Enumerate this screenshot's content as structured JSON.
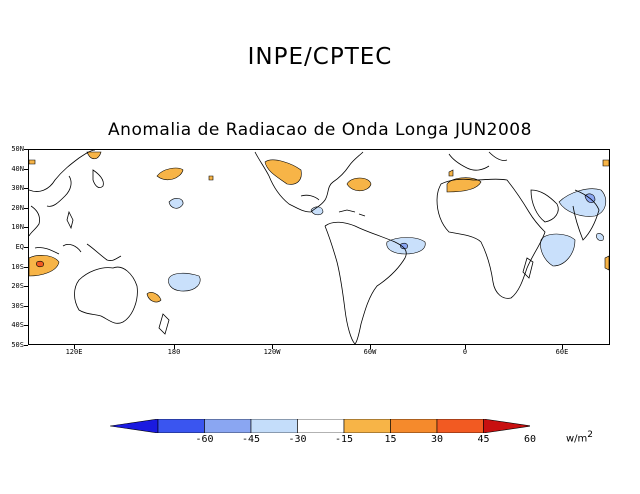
{
  "header": "INPE/CPTEC",
  "title": "Anomalia de Radiacao de Onda Longa JUN2008",
  "map": {
    "lat_labels": [
      "50N",
      "40N",
      "30N",
      "20N",
      "10N",
      "EQ",
      "10S",
      "20S",
      "30S",
      "40S",
      "50S"
    ],
    "lon_labels": [
      "120E",
      "180",
      "120W",
      "60W",
      "0",
      "60E"
    ]
  },
  "legend": {
    "labels": [
      "-60",
      "-45",
      "-30",
      "-15",
      "15",
      "30",
      "45",
      "60"
    ],
    "colors": [
      "#1a1ae0",
      "#3a55f0",
      "#8aa6f2",
      "#c4ddfa",
      "#ffffff",
      "#f7b447",
      "#f58a2c",
      "#f25a22",
      "#c81010"
    ],
    "units": "w/m",
    "units_exp": "2"
  }
}
